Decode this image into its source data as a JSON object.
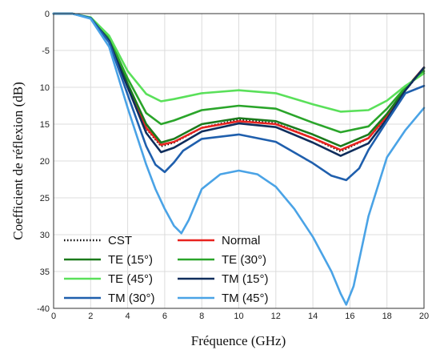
{
  "chart_data": {
    "type": "line",
    "title": "",
    "xlabel": "Fréquence (GHz)",
    "ylabel": "Coefficient de réflexion (dB)",
    "xlim": [
      0,
      20
    ],
    "ylim": [
      -40,
      0
    ],
    "xticks": [
      0,
      2,
      4,
      6,
      8,
      10,
      12,
      14,
      16,
      18,
      20
    ],
    "yticks": [
      0,
      -5,
      -10,
      -15,
      -20,
      -25,
      -30,
      -35,
      -40
    ],
    "ytick_labels": [
      "0",
      "-5",
      "10",
      "15",
      "20",
      "25",
      "30",
      "35",
      "-40"
    ],
    "grid": true,
    "legend_position": "bottom-left",
    "series": [
      {
        "name": "CST",
        "color": "#000000",
        "dash": "dotted",
        "x": [
          0,
          1,
          2,
          3,
          4,
          5,
          5.8,
          6.5,
          8,
          10,
          12,
          14,
          15.5,
          17,
          18,
          19,
          20
        ],
        "y": [
          0,
          0,
          -0.6,
          -3.6,
          -9.8,
          -15.6,
          -18.0,
          -17.5,
          -15.5,
          -14.4,
          -14.9,
          -16.9,
          -18.7,
          -16.9,
          -14.0,
          -10.4,
          -7.4
        ]
      },
      {
        "name": "Normal",
        "color": "#e8231f",
        "dash": "solid",
        "x": [
          0,
          1,
          2,
          3,
          4,
          5,
          5.8,
          6.5,
          8,
          10,
          12,
          14,
          15.5,
          17,
          18,
          19,
          20
        ],
        "y": [
          0,
          0,
          -0.6,
          -3.6,
          -9.7,
          -15.5,
          -17.8,
          -17.4,
          -15.5,
          -14.6,
          -15.0,
          -16.9,
          -18.5,
          -16.9,
          -13.9,
          -10.2,
          -7.3
        ]
      },
      {
        "name": "TE (15°)",
        "color": "#1b7a1b",
        "dash": "solid",
        "x": [
          0,
          1,
          2,
          3,
          4,
          5,
          5.8,
          6.5,
          8,
          10,
          12,
          14,
          15.5,
          17,
          18,
          19,
          20
        ],
        "y": [
          0,
          0,
          -0.6,
          -3.5,
          -9.5,
          -15.0,
          -17.5,
          -17.0,
          -15.0,
          -14.2,
          -14.6,
          -16.4,
          -18.0,
          -16.4,
          -13.6,
          -10.2,
          -7.4
        ]
      },
      {
        "name": "TE (30°)",
        "color": "#2aa52a",
        "dash": "solid",
        "x": [
          0,
          1,
          2,
          3,
          4,
          5,
          5.8,
          6.5,
          8,
          10,
          12,
          14,
          15.5,
          17,
          18,
          19,
          20
        ],
        "y": [
          0,
          0,
          -0.6,
          -3.3,
          -8.8,
          -13.5,
          -15.0,
          -14.5,
          -13.1,
          -12.5,
          -12.9,
          -14.8,
          -16.1,
          -15.3,
          -12.9,
          -10.0,
          -7.8
        ]
      },
      {
        "name": "TE (45°)",
        "color": "#5ae05a",
        "dash": "solid",
        "x": [
          0,
          1,
          2,
          3,
          4,
          5,
          5.8,
          6.5,
          8,
          10,
          12,
          14,
          15.5,
          17,
          18,
          19,
          20
        ],
        "y": [
          0,
          0,
          -0.5,
          -3.0,
          -7.8,
          -10.9,
          -11.9,
          -11.6,
          -10.8,
          -10.4,
          -10.8,
          -12.3,
          -13.3,
          -13.1,
          -11.8,
          -9.8,
          -8.1
        ]
      },
      {
        "name": "TM (15°)",
        "color": "#0f2d5c",
        "dash": "solid",
        "x": [
          0,
          1,
          2,
          3,
          4,
          5,
          5.8,
          6.5,
          8,
          10,
          12,
          14,
          15.5,
          17,
          18,
          19,
          20
        ],
        "y": [
          0,
          0,
          -0.6,
          -3.7,
          -10.0,
          -16.2,
          -18.8,
          -18.2,
          -16.0,
          -14.9,
          -15.4,
          -17.5,
          -19.3,
          -17.6,
          -14.3,
          -10.4,
          -7.3
        ]
      },
      {
        "name": "TM (30°)",
        "color": "#1f5fad",
        "dash": "solid",
        "x": [
          0,
          1,
          2,
          3,
          4,
          5,
          5.5,
          6.0,
          6.5,
          7,
          8,
          10,
          12,
          14,
          15,
          15.8,
          16.5,
          17,
          18,
          19,
          20
        ],
        "y": [
          0,
          0,
          -0.6,
          -3.9,
          -11.0,
          -18.0,
          -20.5,
          -21.5,
          -20.2,
          -18.6,
          -17.0,
          -16.4,
          -17.4,
          -20.3,
          -22.0,
          -22.6,
          -21.0,
          -18.5,
          -14.6,
          -10.8,
          -9.8
        ]
      },
      {
        "name": "TM (45°)",
        "color": "#4aa3e6",
        "dash": "solid",
        "x": [
          0,
          1,
          2,
          3,
          4,
          5,
          5.5,
          6.0,
          6.5,
          6.9,
          7.3,
          8,
          9,
          10,
          11,
          12,
          13,
          14,
          15,
          15.5,
          15.8,
          16.2,
          17,
          18,
          19,
          20
        ],
        "y": [
          0,
          0,
          -0.7,
          -4.5,
          -12.8,
          -20.5,
          -23.8,
          -26.5,
          -28.8,
          -29.8,
          -28.0,
          -23.8,
          -21.8,
          -21.3,
          -21.8,
          -23.5,
          -26.5,
          -30.3,
          -35.0,
          -38.0,
          -39.5,
          -37.0,
          -27.5,
          -19.5,
          -15.8,
          -12.8
        ]
      }
    ]
  }
}
